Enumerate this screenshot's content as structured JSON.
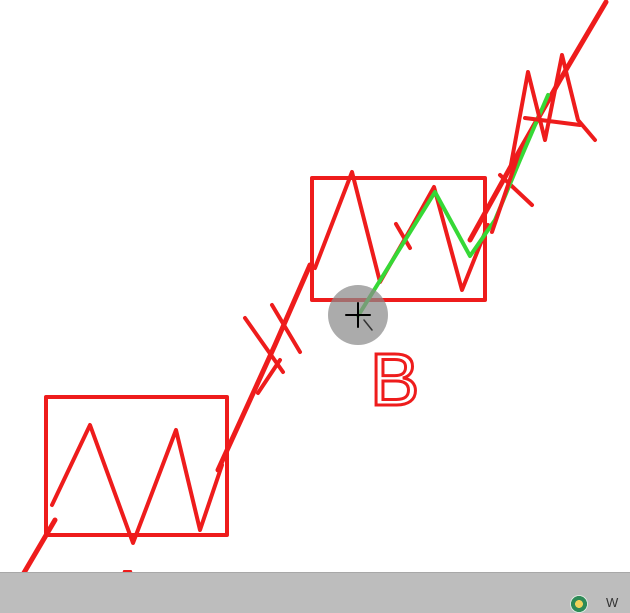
{
  "diagram": {
    "labels": {
      "a": "A",
      "b": "B"
    },
    "colors": {
      "ink_red": "#ee1c1c",
      "ink_green": "#36d836",
      "cursor_halo": "#8a8a8a",
      "taskbar": "#bdbdbd"
    }
  },
  "taskbar": {
    "tray_text": "W",
    "tray_icon": "app-tray-icon"
  }
}
